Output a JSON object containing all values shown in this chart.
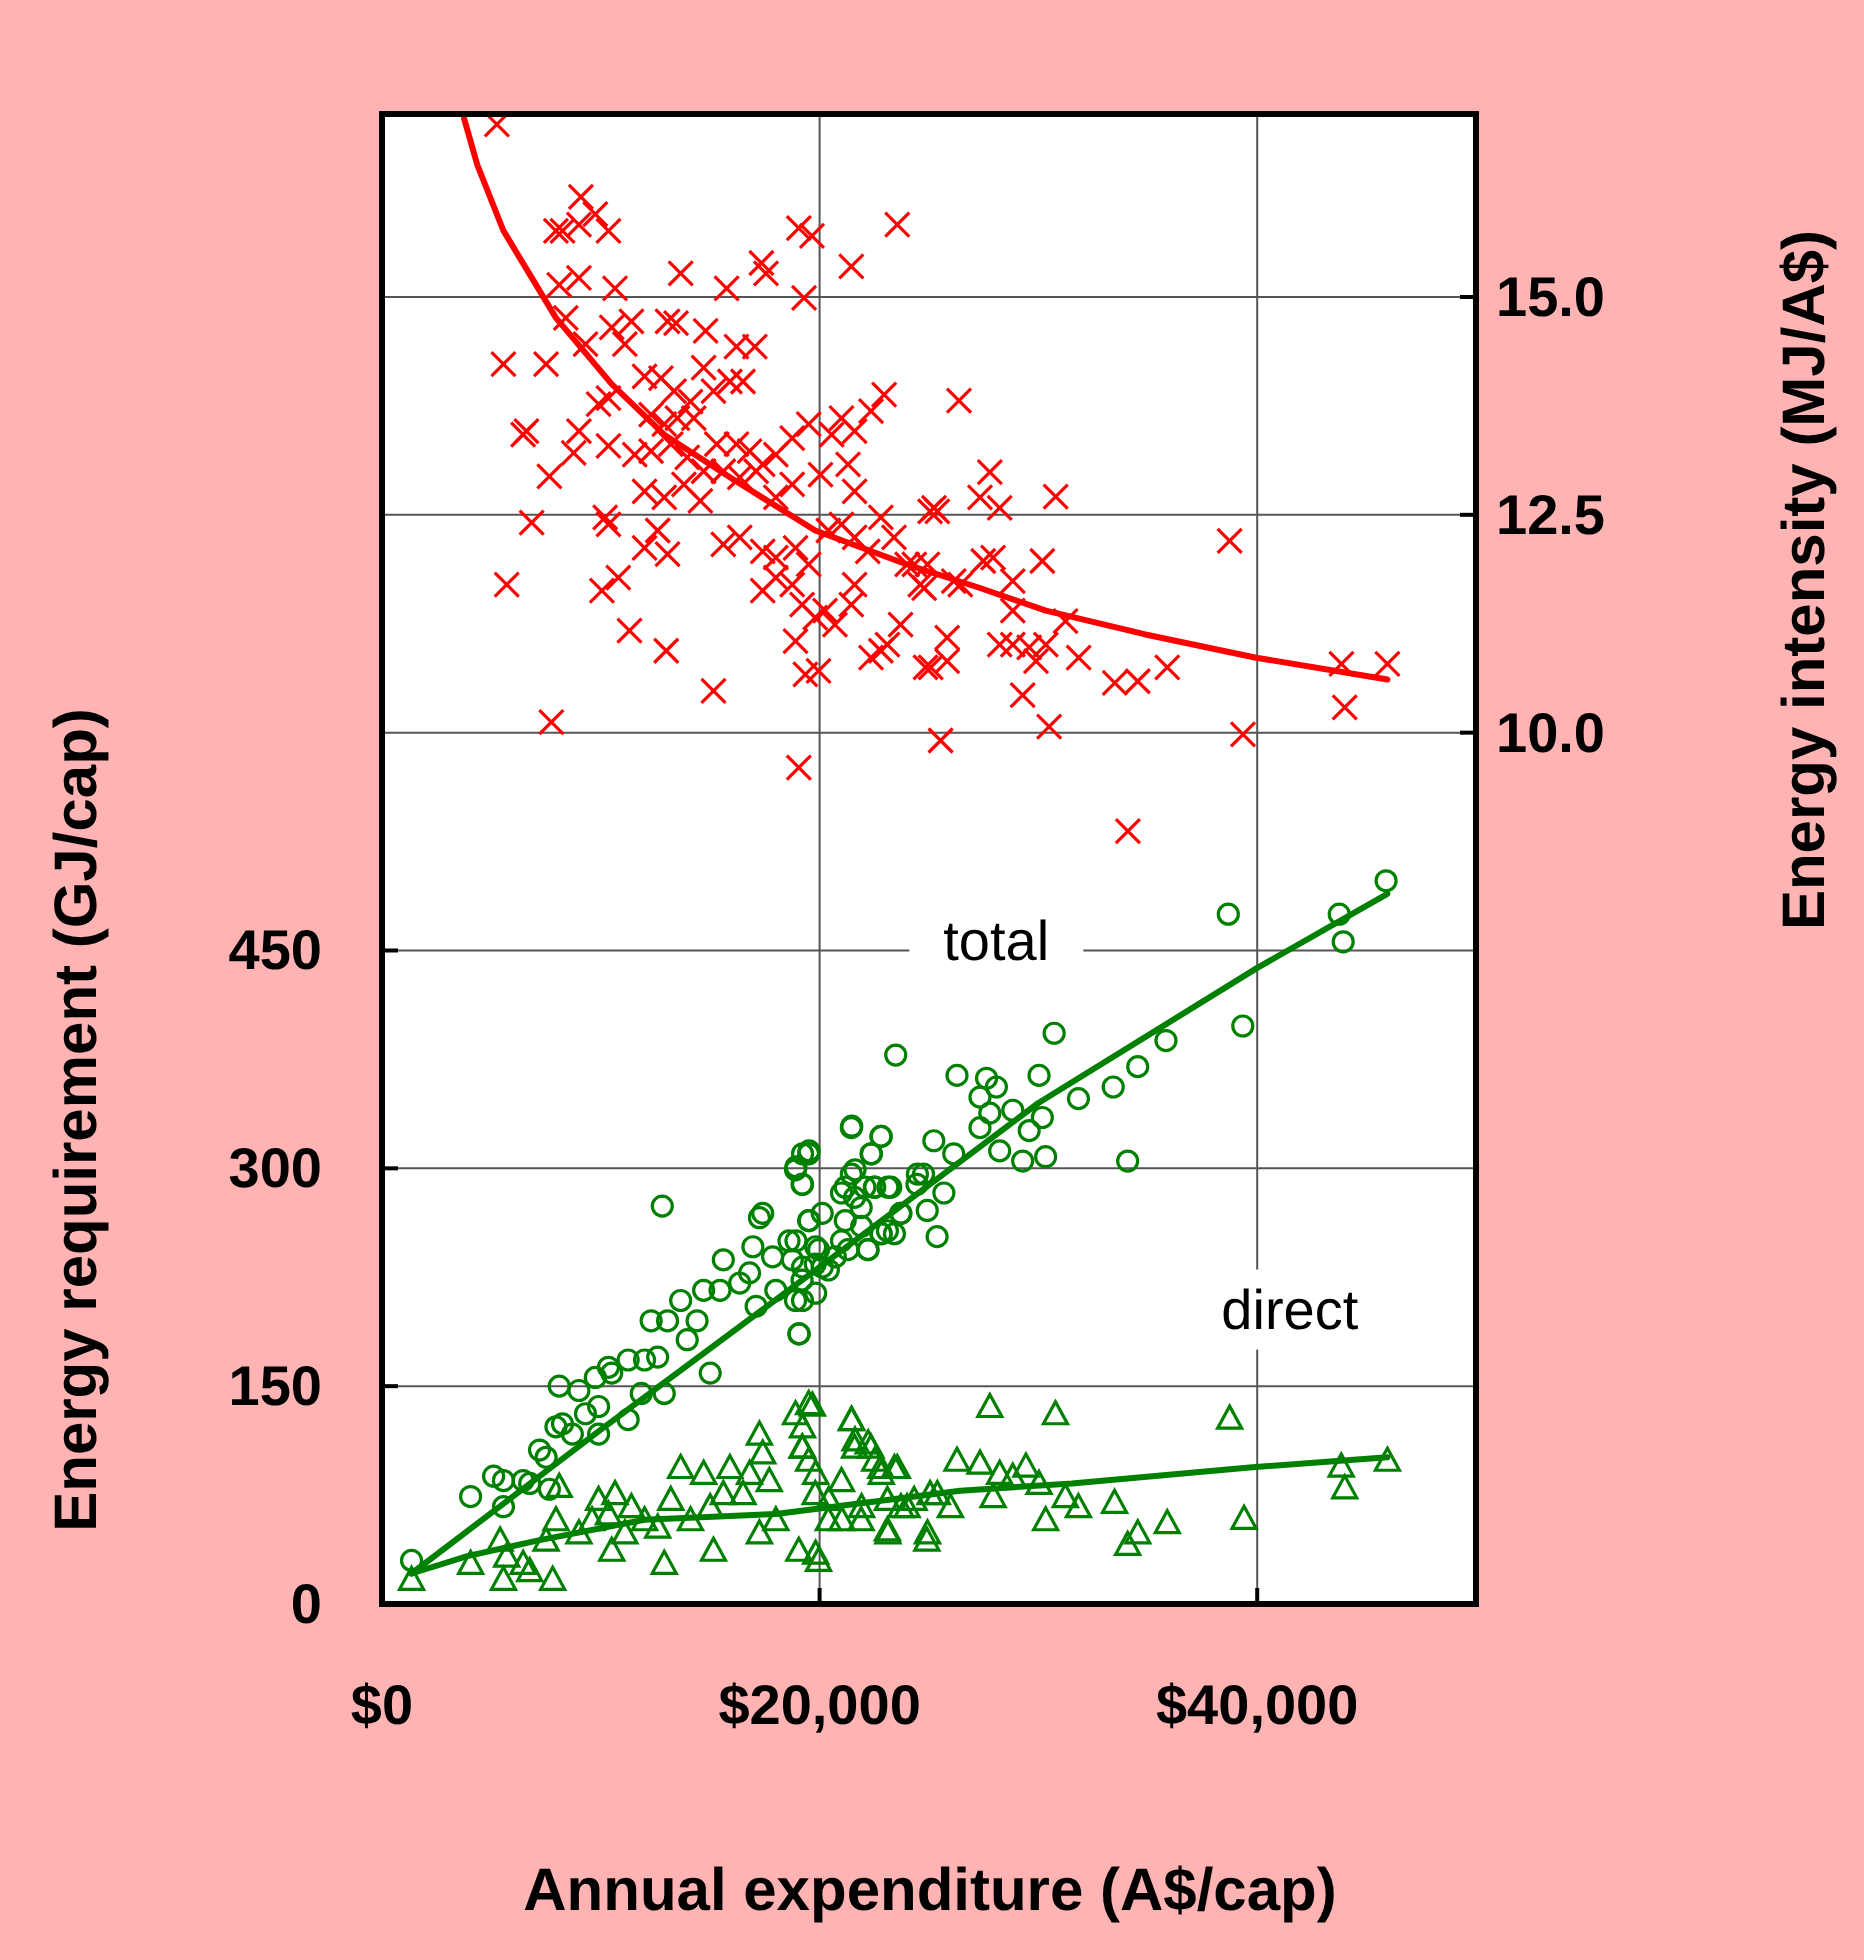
{
  "chart_data": {
    "type": "scatter",
    "xlabel": "Annual expenditure (A$/cap)",
    "ylabel": "Energy requirement (GJ/cap)",
    "y2label": "Energy intensity (MJ/A$)",
    "xlim": [
      0,
      50000
    ],
    "xticks": [
      {
        "value": 0,
        "label": "$0"
      },
      {
        "value": 20000,
        "label": "$20,000"
      },
      {
        "value": 40000,
        "label": "$40,000"
      }
    ],
    "ylim": [
      0,
      1026
    ],
    "yticks": [
      0,
      150,
      300,
      450
    ],
    "y2lim": [
      0,
      17.1
    ],
    "y2ticks": [
      {
        "value": 10,
        "label": "10.0"
      },
      {
        "value": 12.5,
        "label": "12.5"
      },
      {
        "value": 15,
        "label": "15.0"
      }
    ],
    "grid": true,
    "series": [
      {
        "axis": "y2",
        "marker": "cross",
        "color": "#ff0000",
        "x": [
          5250,
          9090,
          7950,
          8250,
          9000,
          9750,
          10350,
          8100,
          9000,
          10650,
          13650,
          15750,
          17340,
          17550,
          19050,
          19650,
          19290,
          21450,
          23550,
          5550,
          7500,
          8400,
          9300,
          10500,
          11400,
          11100,
          13050,
          13440,
          14790,
          16200,
          17040,
          6600,
          6450,
          7650,
          6840,
          5700,
          7740,
          9900,
          10350,
          9000,
          8760,
          10350,
          10200,
          10350,
          10050,
          10800,
          11310,
          12990,
          15150,
          19050,
          12000,
          12750,
          13350,
          14100,
          14700,
          12300,
          12900,
          13500,
          14250,
          15150,
          15900,
          16500,
          11550,
          12300,
          13200,
          13950,
          14700,
          15300,
          16200,
          16800,
          17400,
          18000,
          18750,
          19500,
          12000,
          12900,
          13800,
          14550,
          15600,
          16350,
          17100,
          18000,
          18750,
          20040,
          20550,
          21000,
          21600,
          22350,
          22950,
          21300,
          21600,
          12600,
          12000,
          13050,
          15600,
          16350,
          17400,
          18000,
          18900,
          19500,
          17400,
          18000,
          18750,
          19200,
          19800,
          20250,
          20700,
          21450,
          21600,
          18900,
          19350,
          19950,
          20400,
          21000,
          21600,
          22200,
          22800,
          23400,
          24000,
          24600,
          22350,
          23100,
          23700,
          22800,
          24840,
          25050,
          26370,
          27780,
          27330,
          28230,
          30790,
          25230,
          25380,
          24330,
          24930,
          24780,
          26130,
          26430,
          27480,
          27930,
          28830,
          30180,
          28830,
          31240,
          25830,
          25830,
          25080,
          28230,
          28830,
          29580,
          30340,
          29890,
          31840,
          33490,
          34540,
          35890,
          29280,
          30490,
          25530,
          38740,
          39350,
          34090,
          43850,
          45950,
          44000
        ],
        "values": [
          16.98,
          16.15,
          15.76,
          15.76,
          15.83,
          15.95,
          15.76,
          15.14,
          15.22,
          15.1,
          15.27,
          15.1,
          15.39,
          15.27,
          15.79,
          15.7,
          14.99,
          15.35,
          15.83,
          14.23,
          14.23,
          14.76,
          14.46,
          14.65,
          14.72,
          14.46,
          14.72,
          14.7,
          14.61,
          14.43,
          14.43,
          13.46,
          13.42,
          12.94,
          12.41,
          11.7,
          10.12,
          13.77,
          13.84,
          13.46,
          13.21,
          13.29,
          12.47,
          12.39,
          11.63,
          11.78,
          11.17,
          10.94,
          10.48,
          9.6,
          14.09,
          14.07,
          13.92,
          13.8,
          14.19,
          13.65,
          13.54,
          13.61,
          13.61,
          13.92,
          14.03,
          14.03,
          13.19,
          13.23,
          13.31,
          13.16,
          13.0,
          13.31,
          13.31,
          13.23,
          13.08,
          13.19,
          13.38,
          13.54,
          12.77,
          12.7,
          12.85,
          12.66,
          13.0,
          12.93,
          13.0,
          12.7,
          12.85,
          12.96,
          13.42,
          13.61,
          13.46,
          13.69,
          13.88,
          13.08,
          12.77,
          12.32,
          12.12,
          12.05,
          12.16,
          12.24,
          12.08,
          12.01,
          12.12,
          11.93,
          11.63,
          11.78,
          11.7,
          11.47,
          11.32,
          11.4,
          11.24,
          11.47,
          11.7,
          11.05,
          10.67,
          10.71,
          12.32,
          12.39,
          12.24,
          12.08,
          12.47,
          12.24,
          11.93,
          11.7,
          10.86,
          11.01,
          11.24,
          10.94,
          10.75,
          12.54,
          13.81,
          12.99,
          12.7,
          12.58,
          12.71,
          12.58,
          12.54,
          11.93,
          11.93,
          11.66,
          11.74,
          11.7,
          11.97,
          12.01,
          11.74,
          11.97,
          11.4,
          11.28,
          11.09,
          10.82,
          10.75,
          11.01,
          11.01,
          10.98,
          11.01,
          10.82,
          10.86,
          10.57,
          10.59,
          10.75,
          10.43,
          10.07,
          9.91,
          12.2,
          9.98,
          8.87,
          10.79,
          10.79,
          10.29
        ]
      },
      {
        "type": "line",
        "axis": "y2",
        "marker": "none",
        "color": "#ff0000",
        "x": [
          3750,
          4350,
          5550,
          7950,
          10500,
          12900,
          15900,
          19800,
          24000,
          27330,
          30340,
          34840,
          39950,
          45950
        ],
        "values": [
          17.05,
          16.52,
          15.76,
          14.76,
          14.0,
          13.42,
          12.93,
          12.32,
          11.93,
          11.66,
          11.4,
          11.13,
          10.86,
          10.61
        ]
      },
      {
        "name": "total",
        "marker": "circle",
        "color": "#008000",
        "x": [
          1350,
          4050,
          5550,
          5550,
          5100,
          6450,
          6750,
          7650,
          7200,
          7500,
          7950,
          8250,
          8100,
          9000,
          8700,
          9300,
          9900,
          9900,
          9750,
          10500,
          10350,
          11250,
          11250,
          11850,
          12000,
          12900,
          12600,
          12300,
          13050,
          13650,
          14400,
          13950,
          14700,
          12810,
          15000,
          15450,
          15600,
          16350,
          16800,
          16950,
          17250,
          17400,
          17100,
          18000,
          18900,
          19200,
          18750,
          19800,
          19500,
          17850,
          18600,
          19050,
          18900,
          19200,
          19500,
          21450,
          22800,
          22350,
          21450,
          19950,
          20400,
          21000,
          21600,
          21000,
          21300,
          22200,
          21900,
          22500,
          23250,
          22800,
          23100,
          23700,
          24450,
          24750,
          19220,
          19520,
          18920,
          19220,
          18920,
          19520,
          20120,
          19820,
          19220,
          19220,
          19820,
          19070,
          20120,
          20720,
          21170,
          21620,
          22070,
          22520,
          23120,
          21470,
          22370,
          22820,
          21170,
          21920,
          22820,
          23420,
          22220,
          23720,
          24470,
          25220,
          24920,
          25370,
          25680,
          26130,
          23480,
          26280,
          27330,
          27630,
          28080,
          27780,
          27330,
          28830,
          28230,
          29280,
          29580,
          30180,
          30330,
          30030,
          30720,
          31830,
          33420,
          34080,
          34540,
          35830,
          38680,
          39340,
          43750,
          43930,
          45890
        ],
        "values": [
          30,
          74,
          67,
          85,
          88,
          85,
          83,
          79,
          106,
          101,
          122,
          124,
          150,
          147,
          117,
          131,
          117,
          136,
          156,
          159,
          163,
          127,
          168,
          145,
          168,
          145,
          170,
          195,
          195,
          209,
          195,
          182,
          216,
          274,
          159,
          216,
          237,
          221,
          228,
          246,
          266,
          269,
          205,
          216,
          209,
          223,
          237,
          234,
          264,
          239,
          250,
          186,
          299,
          289,
          310,
          328,
          322,
          310,
          296,
          244,
          230,
          283,
          280,
          250,
          244,
          244,
          273,
          287,
          287,
          255,
          257,
          269,
          289,
          296,
          310,
          312,
          301,
          289,
          250,
          264,
          269,
          246,
          232,
          209,
          214,
          186,
          232,
          239,
          287,
          299,
          287,
          287,
          287,
          329,
          310,
          322,
          264,
          260,
          255,
          255,
          244,
          269,
          296,
          319,
          271,
          253,
          283,
          310,
          378,
          364,
          349,
          362,
          356,
          338,
          328,
          340,
          312,
          305,
          326,
          335,
          308,
          364,
          393,
          348,
          356,
          305,
          370,
          388,
          475,
          398,
          475,
          456,
          498
        ]
      },
      {
        "type": "line",
        "marker": "none",
        "color": "#008000",
        "x": [
          1350,
          10000,
          20000,
          30000,
          40000,
          45950
        ],
        "values": [
          21,
          120,
          232,
          345,
          438,
          489
        ]
      },
      {
        "name": "direct",
        "marker": "triangle",
        "color": "#008000",
        "x": [
          1350,
          4050,
          5550,
          5700,
          5400,
          6450,
          6750,
          7800,
          7500,
          7950,
          8100,
          9000,
          9600,
          9900,
          10350,
          10500,
          11100,
          11400,
          10650,
          12000,
          12600,
          13200,
          13650,
          14100,
          14700,
          15000,
          15150,
          12900,
          15600,
          15900,
          16500,
          16800,
          17250,
          17400,
          17700,
          18000,
          17250,
          18900,
          19500,
          19200,
          19500,
          19800,
          19050,
          19950,
          20400,
          21000,
          21450,
          21600,
          22350,
          22800,
          23550,
          23100,
          21900,
          24000,
          24900,
          25050,
          23100,
          19670,
          19220,
          19220,
          19820,
          20420,
          19820,
          21020,
          21470,
          21620,
          22220,
          22520,
          22820,
          23420,
          21920,
          23120,
          23720,
          24320,
          24930,
          25380,
          25980,
          26280,
          27330,
          27780,
          28230,
          27930,
          28830,
          29430,
          30030,
          30330,
          30780,
          31230,
          31830,
          33480,
          34080,
          34540,
          35890,
          38740,
          39400,
          43840,
          44000,
          45950
        ],
        "values": [
          17,
          28,
          17,
          33,
          44,
          28,
          23,
          17,
          44,
          58,
          81,
          49,
          58,
          72,
          62,
          37,
          49,
          67,
          76,
          58,
          53,
          72,
          94,
          58,
          90,
          67,
          37,
          28,
          76,
          94,
          76,
          90,
          117,
          104,
          85,
          58,
          49,
          131,
          138,
          108,
          99,
          76,
          37,
          30,
          58,
          85,
          127,
          108,
          108,
          94,
          94,
          72,
          58,
          67,
          44,
          76,
          51,
          137,
          122,
          108,
          90,
          72,
          35,
          58,
          127,
          113,
          111,
          99,
          90,
          94,
          67,
          49,
          67,
          72,
          49,
          76,
          67,
          99,
          97,
          136,
          90,
          74,
          88,
          95,
          83,
          58,
          131,
          74,
          67,
          70,
          41,
          49,
          56,
          128,
          59,
          95,
          80,
          99
        ]
      },
      {
        "type": "line",
        "marker": "none",
        "color": "#008000",
        "x": [
          1350,
          3900,
          7200,
          12000,
          18000,
          26430,
          31530,
          39640,
          45950
        ],
        "values": [
          21,
          33,
          44,
          58,
          62,
          78,
          83,
          94,
          101
        ]
      }
    ]
  }
}
